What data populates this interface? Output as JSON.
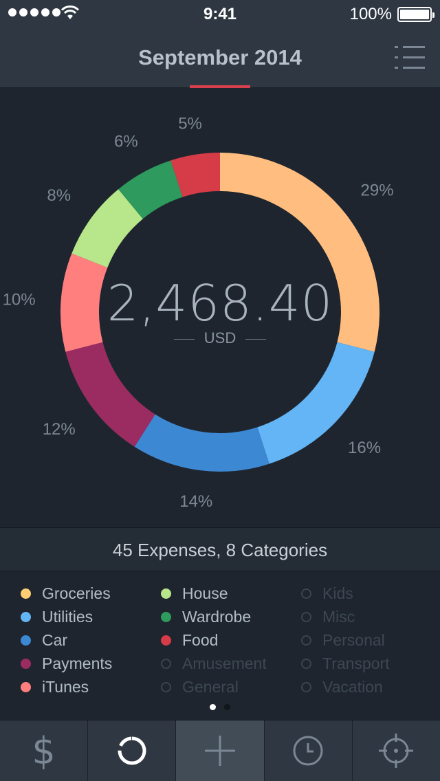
{
  "status": {
    "time": "9:41",
    "battery": "100%"
  },
  "header": {
    "title": "September 2014"
  },
  "chart_data": {
    "type": "pie",
    "slices": [
      {
        "label": "Groceries",
        "value": 29,
        "color": "#ffbd80"
      },
      {
        "label": "Utilities",
        "value": 16,
        "color": "#64b5f6"
      },
      {
        "label": "Car",
        "value": 14,
        "color": "#3d88d3"
      },
      {
        "label": "Payments",
        "value": 12,
        "color": "#9b2c62"
      },
      {
        "label": "iTunes",
        "value": 10,
        "color": "#ff7f7f"
      },
      {
        "label": "House",
        "value": 8,
        "color": "#b8e68a"
      },
      {
        "label": "Wardrobe",
        "value": 6,
        "color": "#2e9a5d"
      },
      {
        "label": "Food",
        "value": 5,
        "color": "#d63b48"
      }
    ],
    "percent_labels": [
      "29%",
      "16%",
      "14%",
      "12%",
      "10%",
      "8%",
      "6%",
      "5%"
    ]
  },
  "total": {
    "amount": "2,468.40",
    "currency": "USD"
  },
  "summary": "45 Expenses, 8 Categories",
  "legend": {
    "col1": [
      {
        "label": "Groceries",
        "color": "#ffcd73",
        "active": true
      },
      {
        "label": "Utilities",
        "color": "#64b5f6",
        "active": true
      },
      {
        "label": "Car",
        "color": "#3d88d3",
        "active": true
      },
      {
        "label": "Payments",
        "color": "#9b2c62",
        "active": true
      },
      {
        "label": "iTunes",
        "color": "#ff7f7f",
        "active": true
      }
    ],
    "col2": [
      {
        "label": "House",
        "color": "#b8e68a",
        "active": true
      },
      {
        "label": "Wardrobe",
        "color": "#2e9a5d",
        "active": true
      },
      {
        "label": "Food",
        "color": "#d63b48",
        "active": true
      },
      {
        "label": "Amusement",
        "color": "",
        "active": false
      },
      {
        "label": "General",
        "color": "",
        "active": false
      }
    ],
    "col3": [
      {
        "label": "Kids",
        "color": "",
        "active": false
      },
      {
        "label": "Misc",
        "color": "",
        "active": false
      },
      {
        "label": "Personal",
        "color": "",
        "active": false
      },
      {
        "label": "Transport",
        "color": "",
        "active": false
      },
      {
        "label": "Vacation",
        "color": "",
        "active": false
      }
    ]
  },
  "pager": {
    "pages": 2,
    "current": 1
  },
  "tabs": [
    {
      "icon": "dollar-icon",
      "glyph": "$"
    },
    {
      "icon": "donut-chart-icon"
    },
    {
      "icon": "plus-icon"
    },
    {
      "icon": "clock-icon"
    },
    {
      "icon": "crosshair-icon"
    }
  ]
}
